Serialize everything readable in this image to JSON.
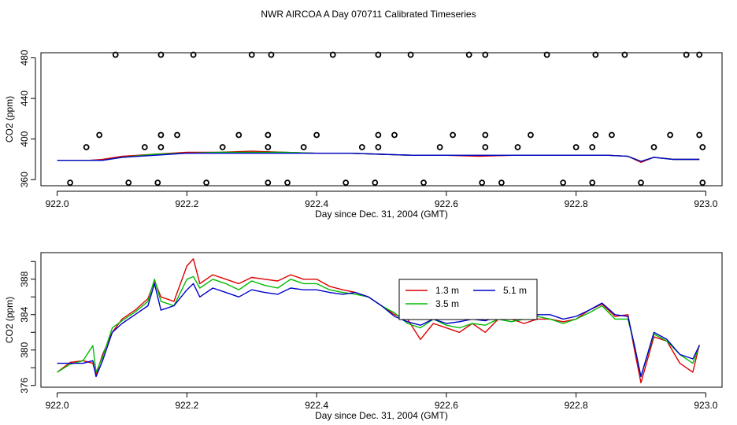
{
  "title": "NWR AIRCOA A  Day 070711  Calibrated Timeseries",
  "series_colors": {
    "1.3 m": "#dd0000",
    "3.5 m": "#00bb00",
    "5.1 m": "#0000cc"
  },
  "chart_data": [
    {
      "type": "line",
      "panel": "top",
      "xlabel": "Day since Dec. 31, 2004 (GMT)",
      "ylabel": "CO2 (ppm)",
      "xlim": [
        921.975,
        923.025
      ],
      "ylim": [
        354,
        485
      ],
      "xticks": [
        922.0,
        922.2,
        922.4,
        922.6,
        922.8,
        923.0
      ],
      "xtick_labels": [
        "922.0",
        "922.2",
        "922.4",
        "922.6",
        "922.8",
        "923.0"
      ],
      "yticks": [
        360,
        400,
        440,
        480
      ],
      "ytick_labels": [
        "360",
        "400",
        "440",
        "480"
      ],
      "series": [
        {
          "name": "1.3 m",
          "x": [
            922.0,
            922.05,
            922.07,
            922.1,
            922.15,
            922.2,
            922.25,
            922.3,
            922.35,
            922.4,
            922.45,
            922.5,
            922.55,
            922.6,
            922.65,
            922.7,
            922.75,
            922.8,
            922.85,
            922.88,
            922.9,
            922.92,
            922.95,
            922.99
          ],
          "y": [
            379,
            379,
            380,
            383,
            385,
            387,
            387,
            388,
            387,
            386,
            386,
            385,
            384,
            384,
            383,
            384,
            384,
            384,
            384,
            383,
            377,
            382,
            380,
            380
          ]
        },
        {
          "name": "3.5 m",
          "x": [
            922.0,
            922.05,
            922.07,
            922.1,
            922.15,
            922.2,
            922.25,
            922.3,
            922.35,
            922.4,
            922.45,
            922.5,
            922.55,
            922.6,
            922.65,
            922.7,
            922.75,
            922.8,
            922.85,
            922.88,
            922.9,
            922.92,
            922.95,
            922.99
          ],
          "y": [
            379,
            379,
            379,
            382,
            385,
            386,
            387,
            387,
            387,
            386,
            386,
            385,
            384,
            384,
            384,
            384,
            384,
            384,
            384,
            383,
            378,
            382,
            380,
            380
          ]
        },
        {
          "name": "5.1 m",
          "x": [
            922.0,
            922.05,
            922.07,
            922.1,
            922.15,
            922.2,
            922.25,
            922.3,
            922.35,
            922.4,
            922.45,
            922.5,
            922.55,
            922.6,
            922.65,
            922.7,
            922.75,
            922.8,
            922.85,
            922.88,
            922.9,
            922.92,
            922.95,
            922.99
          ],
          "y": [
            379,
            379,
            379,
            382,
            384,
            386,
            386,
            386,
            386,
            386,
            386,
            385,
            384,
            384,
            384,
            384,
            384,
            384,
            384,
            383,
            378,
            382,
            380,
            380
          ]
        }
      ],
      "calibration_points": {
        "x": [
          922.02,
          922.045,
          922.065,
          922.09,
          922.11,
          922.135,
          922.155,
          922.16,
          922.16,
          922.16,
          922.185,
          922.21,
          922.23,
          922.255,
          922.28,
          922.3,
          922.325,
          922.325,
          922.325,
          922.33,
          922.355,
          922.38,
          922.4,
          922.425,
          922.445,
          922.47,
          922.49,
          922.495,
          922.495,
          922.495,
          922.52,
          922.545,
          922.565,
          922.59,
          922.61,
          922.635,
          922.655,
          922.66,
          922.66,
          922.66,
          922.685,
          922.71,
          922.73,
          922.755,
          922.78,
          922.8,
          922.825,
          922.825,
          922.83,
          922.83,
          922.855,
          922.875,
          922.9,
          922.92,
          922.945,
          922.97,
          922.99,
          922.99,
          922.995,
          922.995
        ],
        "y": [
          357,
          392,
          404,
          483,
          357,
          392,
          357,
          392,
          404,
          483,
          404,
          483,
          357,
          392,
          404,
          483,
          357,
          392,
          404,
          483,
          357,
          392,
          404,
          483,
          357,
          392,
          357,
          392,
          404,
          483,
          404,
          483,
          357,
          392,
          404,
          483,
          357,
          392,
          404,
          483,
          357,
          392,
          404,
          483,
          357,
          392,
          357,
          392,
          404,
          483,
          404,
          483,
          357,
          392,
          404,
          483,
          404,
          483,
          357,
          392
        ]
      }
    },
    {
      "type": "line",
      "panel": "bottom",
      "xlabel": "Day since Dec. 31, 2004 (GMT)",
      "ylabel": "CO2 (ppm)",
      "xlim": [
        921.975,
        923.025
      ],
      "ylim": [
        375.8,
        391.0
      ],
      "xticks": [
        922.0,
        922.2,
        922.4,
        922.6,
        922.8,
        923.0
      ],
      "xtick_labels": [
        "922.0",
        "922.2",
        "922.4",
        "922.6",
        "922.8",
        "923.0"
      ],
      "yticks": [
        376,
        378,
        380,
        382,
        384,
        386,
        388,
        390
      ],
      "ytick_labels": [
        "376",
        "",
        "380",
        "",
        "384",
        "",
        "388",
        ""
      ],
      "legend": {
        "entries": [
          "1.3 m",
          "5.1 m",
          "3.5 m"
        ],
        "placement": "center-right"
      },
      "series": [
        {
          "name": "1.3 m",
          "x": [
            922.0,
            922.02,
            922.04,
            922.055,
            922.06,
            922.07,
            922.085,
            922.1,
            922.12,
            922.14,
            922.15,
            922.16,
            922.18,
            922.2,
            922.21,
            922.22,
            922.24,
            922.26,
            922.28,
            922.3,
            922.32,
            922.34,
            922.36,
            922.38,
            922.4,
            922.42,
            922.44,
            922.46,
            922.48,
            922.5,
            922.52,
            922.54,
            922.56,
            922.58,
            922.6,
            922.62,
            922.64,
            922.66,
            922.68,
            922.7,
            922.72,
            922.74,
            922.76,
            922.78,
            922.8,
            922.82,
            922.84,
            922.86,
            922.88,
            922.89,
            922.9,
            922.92,
            922.94,
            922.96,
            922.98,
            922.99
          ],
          "y": [
            377.5,
            378.6,
            378.8,
            378.5,
            377.2,
            379.5,
            382.0,
            383.5,
            384.5,
            385.8,
            387.8,
            386.0,
            385.5,
            389.5,
            390.3,
            387.5,
            388.5,
            388.0,
            387.5,
            388.2,
            388.0,
            387.8,
            388.5,
            388.0,
            388.0,
            387.2,
            386.8,
            386.5,
            386.0,
            385.0,
            384.0,
            383.5,
            381.2,
            383.0,
            382.5,
            382.0,
            383.0,
            382.0,
            383.5,
            383.5,
            383.0,
            383.5,
            383.5,
            383.2,
            383.5,
            384.5,
            385.2,
            383.8,
            384.0,
            380.0,
            376.3,
            381.5,
            381.0,
            378.5,
            377.5,
            380.6
          ]
        },
        {
          "name": "3.5 m",
          "x": [
            922.0,
            922.02,
            922.04,
            922.055,
            922.06,
            922.07,
            922.085,
            922.1,
            922.12,
            922.14,
            922.15,
            922.16,
            922.18,
            922.2,
            922.21,
            922.22,
            922.24,
            922.26,
            922.28,
            922.3,
            922.32,
            922.34,
            922.36,
            922.38,
            922.4,
            922.42,
            922.44,
            922.46,
            922.48,
            922.5,
            922.52,
            922.54,
            922.56,
            922.58,
            922.6,
            922.62,
            922.64,
            922.66,
            922.68,
            922.7,
            922.72,
            922.74,
            922.76,
            922.78,
            922.8,
            922.82,
            922.84,
            922.86,
            922.88,
            922.89,
            922.9,
            922.92,
            922.94,
            922.96,
            922.98,
            922.99
          ],
          "y": [
            377.5,
            378.4,
            378.8,
            380.5,
            377.5,
            379.2,
            382.5,
            383.3,
            384.3,
            385.5,
            388.0,
            385.5,
            385.0,
            388.0,
            388.3,
            387.0,
            388.0,
            387.5,
            386.8,
            387.8,
            387.3,
            387.0,
            388.0,
            387.5,
            387.5,
            386.8,
            386.5,
            386.3,
            386.0,
            385.0,
            384.2,
            383.0,
            382.5,
            383.5,
            382.8,
            382.5,
            383.0,
            382.8,
            383.5,
            383.2,
            383.5,
            383.8,
            383.5,
            383.0,
            383.5,
            384.2,
            385.0,
            383.5,
            383.5,
            380.5,
            377.0,
            381.8,
            381.0,
            379.5,
            378.5,
            380.5
          ]
        },
        {
          "name": "5.1 m",
          "x": [
            922.0,
            922.02,
            922.04,
            922.055,
            922.06,
            922.07,
            922.085,
            922.1,
            922.12,
            922.14,
            922.15,
            922.16,
            922.18,
            922.2,
            922.21,
            922.22,
            922.24,
            922.26,
            922.28,
            922.3,
            922.32,
            922.34,
            922.36,
            922.38,
            922.4,
            922.42,
            922.44,
            922.46,
            922.48,
            922.5,
            922.52,
            922.54,
            922.56,
            922.58,
            922.6,
            922.62,
            922.64,
            922.66,
            922.68,
            922.7,
            922.72,
            922.74,
            922.76,
            922.78,
            922.8,
            922.82,
            922.84,
            922.86,
            922.88,
            922.89,
            922.9,
            922.92,
            922.94,
            922.96,
            922.98,
            922.99
          ],
          "y": [
            378.5,
            378.5,
            378.5,
            378.8,
            377.0,
            378.8,
            382.0,
            383.0,
            384.0,
            385.0,
            387.5,
            384.5,
            385.0,
            386.8,
            387.5,
            386.0,
            387.0,
            386.5,
            386.0,
            386.8,
            386.5,
            386.3,
            387.0,
            386.8,
            386.8,
            386.5,
            386.3,
            386.5,
            386.0,
            385.0,
            383.8,
            383.2,
            382.8,
            383.5,
            383.0,
            383.2,
            383.5,
            383.3,
            383.8,
            384.0,
            384.2,
            384.0,
            384.0,
            383.5,
            383.8,
            384.5,
            385.3,
            384.0,
            383.8,
            380.5,
            377.0,
            382.0,
            381.2,
            379.5,
            379.0,
            380.5
          ]
        }
      ]
    }
  ]
}
